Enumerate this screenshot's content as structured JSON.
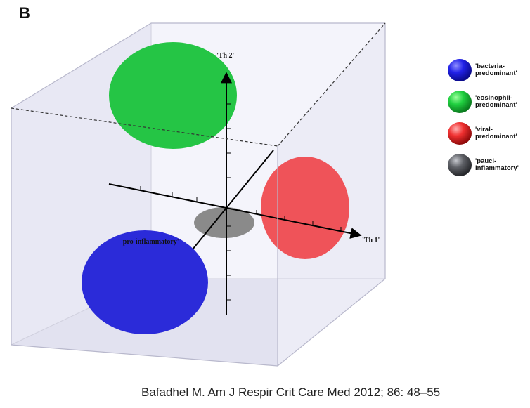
{
  "panel_letter": "B",
  "axes": {
    "x_label": "'Th 1'",
    "y_label": "'Th 2'",
    "z_label": "'pro-inflammatory'"
  },
  "clusters": [
    {
      "name": "'bacteria-predominant'",
      "color": "#2b2bd9"
    },
    {
      "name": "'eosinophil-predominant'",
      "color": "#25c545"
    },
    {
      "name": "'viral-predominant'",
      "color": "#ef4b50"
    },
    {
      "name": "'pauci-inflammatory'",
      "color": "#8a8a8a"
    }
  ],
  "legend": {
    "items": [
      {
        "label": "'bacteria-\npredominant'",
        "color": "#2b2bd9"
      },
      {
        "label": "'eosinophil-\npredominant'",
        "color": "#25c545"
      },
      {
        "label": "'viral-\npredominant'",
        "color": "#ef4b50"
      },
      {
        "label": "'pauci-\ninflammatory'",
        "color": "#5e6066"
      }
    ]
  },
  "citation": "Bafadhel M. Am J Respir Crit Care Med 2012; 86: 48–55"
}
